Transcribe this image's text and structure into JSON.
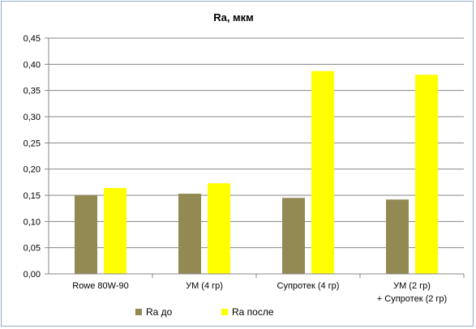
{
  "chart_data": {
    "type": "bar",
    "title": "Ra, мкм",
    "xlabel": "",
    "ylabel": "",
    "categories": [
      [
        "Rowe 80W-90"
      ],
      [
        "УМ (4 гр)"
      ],
      [
        "Супротек (4 гр)"
      ],
      [
        "УМ (2 гр)",
        "+ Супротек (2 гр)"
      ]
    ],
    "series": [
      {
        "name": "Ra до",
        "color": "#938953",
        "values": [
          0.15,
          0.153,
          0.145,
          0.142
        ]
      },
      {
        "name": "Ra после",
        "color": "#ffff00",
        "values": [
          0.164,
          0.173,
          0.387,
          0.38
        ]
      }
    ],
    "ylim": [
      0,
      0.45
    ],
    "yticks": [
      "0,00",
      "0,05",
      "0,10",
      "0,15",
      "0,20",
      "0,25",
      "0,30",
      "0,35",
      "0,40",
      "0,45"
    ],
    "grid": true,
    "legend_position": "bottom"
  }
}
